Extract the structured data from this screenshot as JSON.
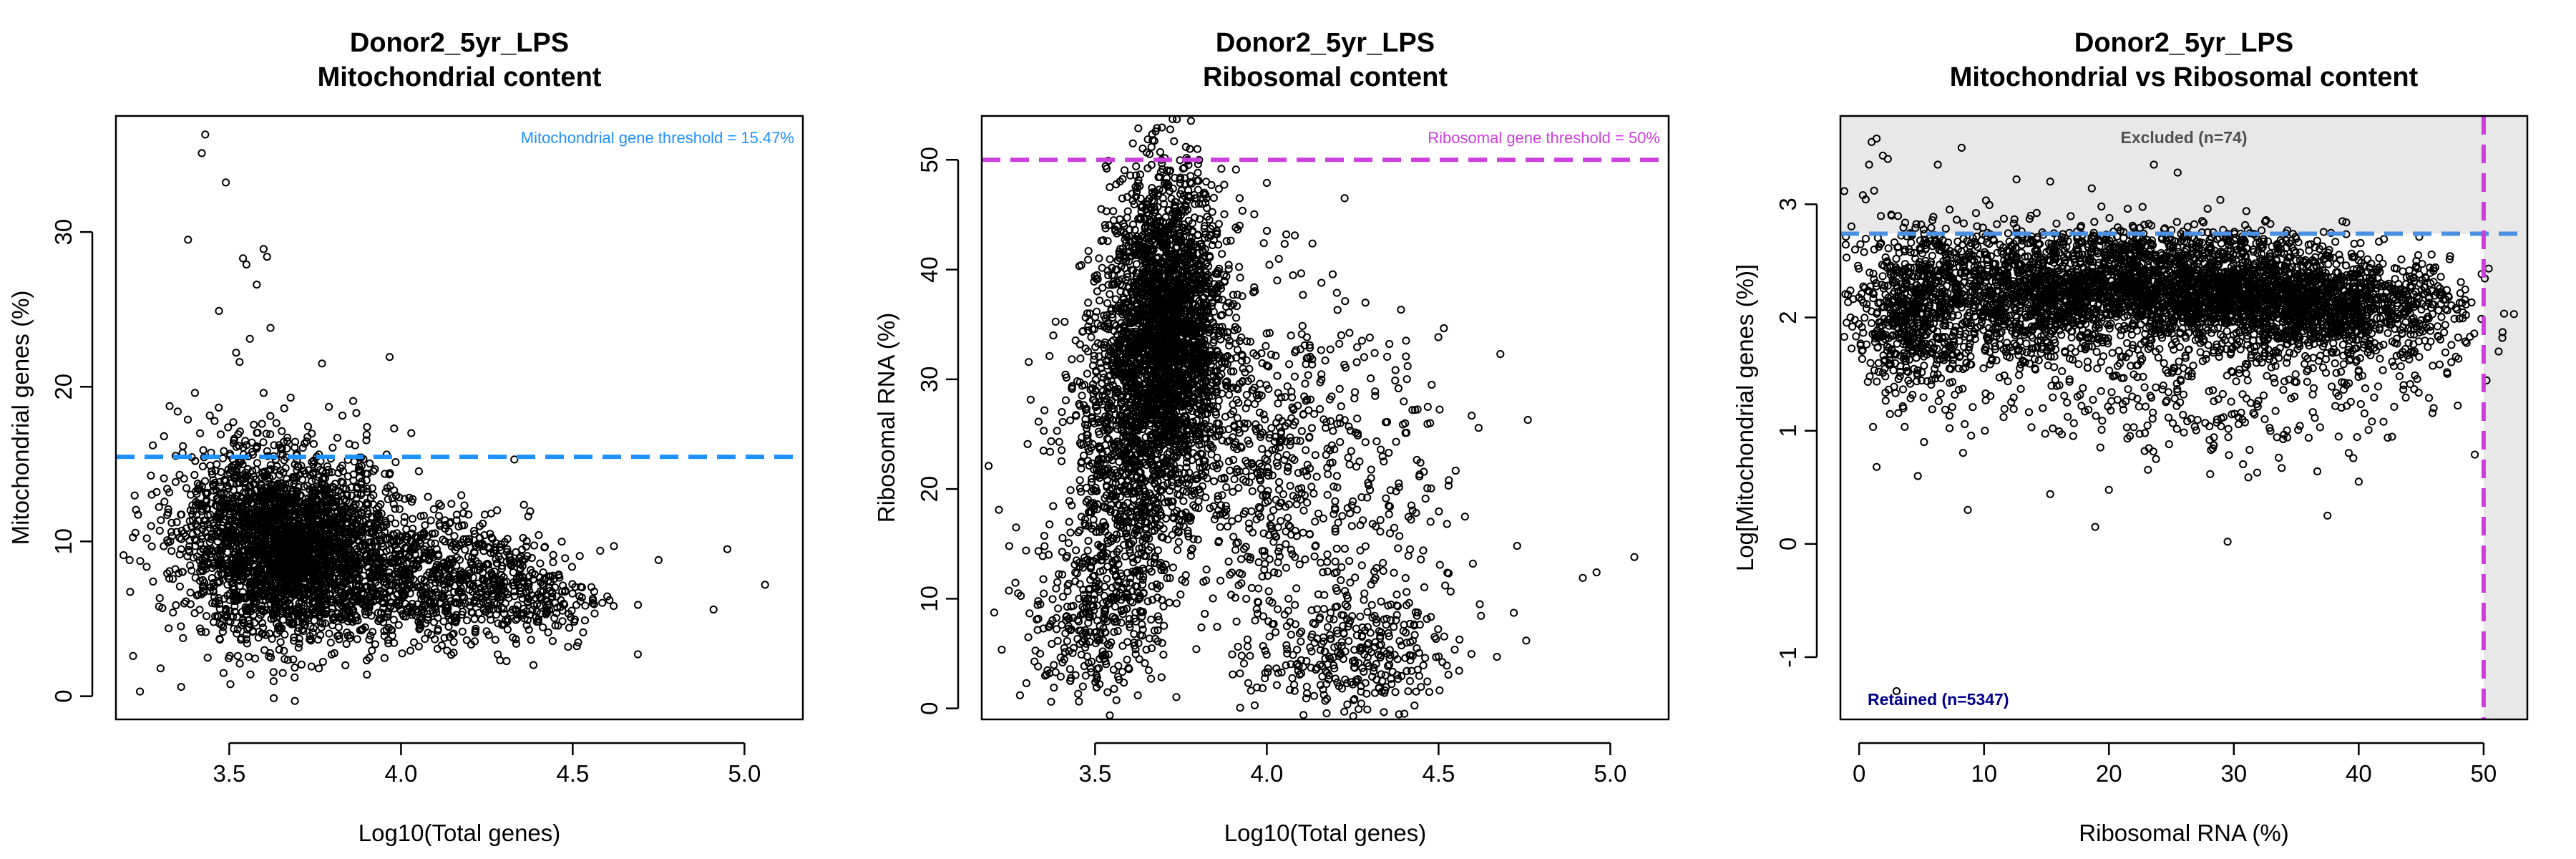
{
  "chart_data": [
    {
      "type": "scatter",
      "title": [
        "Donor2_5yr_LPS",
        "Mitochondrial content"
      ],
      "xlabel": "Log10(Total genes)",
      "ylabel": "Mitochondrial genes (%)",
      "xlim": [
        3.17,
        5.17
      ],
      "ylim": [
        -1.5,
        37.5
      ],
      "xticks": [
        3.5,
        4.0,
        4.5,
        5.0
      ],
      "yticks": [
        0,
        10,
        20,
        30
      ],
      "xtick_labels": [
        "3.5",
        "4.0",
        "4.5",
        "5.0"
      ],
      "ytick_labels": [
        "0",
        "10",
        "20",
        "30"
      ],
      "threshold": {
        "axis": "y",
        "value": 15.47,
        "label": "Mitochondrial gene threshold = 15.47%",
        "color": "#1E90FF"
      },
      "point_color": "#000000",
      "points": [
        [
          3.43,
          36.3
        ],
        [
          3.42,
          35.1
        ],
        [
          3.49,
          33.2
        ],
        [
          3.38,
          29.5
        ],
        [
          3.6,
          28.9
        ],
        [
          3.61,
          28.4
        ],
        [
          3.54,
          28.3
        ],
        [
          3.55,
          27.9
        ],
        [
          3.58,
          26.6
        ],
        [
          3.47,
          24.9
        ],
        [
          3.56,
          23.1
        ],
        [
          3.62,
          23.8
        ],
        [
          3.52,
          22.2
        ],
        [
          3.53,
          21.6
        ],
        [
          3.77,
          21.5
        ],
        [
          3.6,
          19.6
        ],
        [
          3.66,
          18.6
        ],
        [
          3.79,
          18.7
        ],
        [
          3.4,
          19.6
        ],
        [
          3.35,
          18.4
        ],
        [
          3.87,
          18.3
        ],
        [
          3.98,
          17.3
        ],
        [
          4.03,
          17.0
        ],
        [
          3.9,
          16.9
        ],
        [
          3.31,
          16.8
        ],
        [
          4.33,
          15.3
        ],
        [
          4.95,
          9.5
        ],
        [
          5.06,
          7.2
        ],
        [
          4.91,
          5.6
        ],
        [
          4.69,
          5.9
        ],
        [
          4.75,
          8.8
        ],
        [
          4.62,
          9.7
        ],
        [
          4.58,
          9.4
        ],
        [
          3.22,
          2.6
        ],
        [
          3.24,
          0.3
        ],
        [
          3.36,
          0.6
        ],
        [
          3.3,
          1.8
        ],
        [
          3.21,
          8.8
        ],
        [
          3.26,
          10.2
        ]
      ],
      "clusters": [
        {
          "x": 3.68,
          "y": 9.5,
          "sx": 0.15,
          "sy": 2.9,
          "n": 2600
        },
        {
          "x": 4.05,
          "y": 7.6,
          "sx": 0.16,
          "sy": 2.0,
          "n": 700
        },
        {
          "x": 4.35,
          "y": 6.6,
          "sx": 0.12,
          "sy": 1.8,
          "n": 280
        },
        {
          "x": 3.52,
          "y": 12.2,
          "sx": 0.1,
          "sy": 2.6,
          "n": 220
        }
      ]
    },
    {
      "type": "scatter",
      "title": [
        "Donor2_5yr_LPS",
        "Ribosomal content"
      ],
      "xlabel": "Log10(Total genes)",
      "ylabel": "Ribosomal RNA (%)",
      "xlim": [
        3.17,
        5.17
      ],
      "ylim": [
        -1,
        54
      ],
      "xticks": [
        3.5,
        4.0,
        4.5,
        5.0
      ],
      "yticks": [
        0,
        10,
        20,
        30,
        40,
        50
      ],
      "xtick_labels": [
        "3.5",
        "4.0",
        "4.5",
        "5.0"
      ],
      "ytick_labels": [
        "0",
        "10",
        "20",
        "30",
        "40",
        "50"
      ],
      "threshold": {
        "axis": "y",
        "value": 50,
        "label": "Ribosomal gene threshold = 50%",
        "color": "#CD3EDD"
      },
      "point_color": "#000000",
      "points": [
        [
          3.61,
          51.5
        ],
        [
          3.73,
          51.7
        ],
        [
          3.8,
          49.6
        ],
        [
          4.0,
          47.9
        ],
        [
          4.68,
          32.3
        ],
        [
          4.76,
          26.3
        ],
        [
          4.92,
          11.9
        ],
        [
          4.96,
          12.4
        ],
        [
          5.07,
          13.8
        ],
        [
          4.62,
          9.5
        ],
        [
          4.67,
          4.7
        ],
        [
          4.6,
          13.2
        ],
        [
          4.53,
          20.8
        ],
        [
          4.48,
          29.5
        ],
        [
          4.41,
          31.2
        ],
        [
          3.22,
          18.1
        ],
        [
          3.25,
          14.8
        ],
        [
          3.3,
          2.3
        ],
        [
          3.27,
          16.5
        ],
        [
          3.19,
          22.1
        ],
        [
          3.35,
          23.5
        ],
        [
          3.33,
          8.1
        ],
        [
          3.38,
          1.9
        ],
        [
          3.4,
          2.9
        ]
      ],
      "clusters": [
        {
          "x": 3.71,
          "y": 34.0,
          "sx": 0.085,
          "sy": 7.2,
          "n": 2600
        },
        {
          "x": 3.58,
          "y": 22.0,
          "sx": 0.09,
          "sy": 8.0,
          "n": 900
        },
        {
          "x": 4.02,
          "y": 22.0,
          "sx": 0.14,
          "sy": 9.0,
          "n": 500
        },
        {
          "x": 4.25,
          "y": 5.0,
          "sx": 0.14,
          "sy": 2.6,
          "n": 280
        },
        {
          "x": 3.5,
          "y": 8.0,
          "sx": 0.1,
          "sy": 4.0,
          "n": 250
        },
        {
          "x": 4.3,
          "y": 17.0,
          "sx": 0.15,
          "sy": 8.0,
          "n": 170
        }
      ]
    },
    {
      "type": "scatter",
      "title": [
        "Donor2_5yr_LPS",
        "Mitochondrial vs Ribosomal content"
      ],
      "xlabel": "Ribosomal RNA (%)",
      "ylabel": "Log[Mitochondrial genes (%)]",
      "xlim": [
        -1.5,
        53.5
      ],
      "ylim": [
        -1.55,
        3.78
      ],
      "xticks": [
        0,
        10,
        20,
        30,
        40,
        50
      ],
      "yticks": [
        -1,
        0,
        1,
        2,
        3
      ],
      "xtick_labels": [
        "0",
        "10",
        "20",
        "30",
        "40",
        "50"
      ],
      "ytick_labels": [
        "-1",
        "0",
        "1",
        "2",
        "3"
      ],
      "threshold_y": {
        "value": 2.74,
        "color": "#4A90E2"
      },
      "threshold_x": {
        "value": 50,
        "color": "#CD3EDD"
      },
      "excluded_label": "Excluded (n=74)",
      "retained_label": "Retained (n=5347)",
      "excluded_fill": "#E8E8E8",
      "excluded_text_color": "#505050",
      "retained_text_color": "#00008B",
      "point_color": "#000000",
      "points": [
        [
          1.4,
          3.58
        ],
        [
          1.0,
          3.55
        ],
        [
          0.8,
          3.35
        ],
        [
          1.9,
          3.43
        ],
        [
          2.3,
          3.4
        ],
        [
          0.3,
          3.08
        ],
        [
          1.2,
          3.12
        ],
        [
          2.6,
          2.9
        ],
        [
          6.3,
          3.35
        ],
        [
          12.6,
          3.22
        ],
        [
          15.3,
          3.2
        ],
        [
          23.6,
          3.35
        ],
        [
          25.5,
          3.28
        ],
        [
          19.4,
          2.98
        ],
        [
          21.5,
          2.96
        ],
        [
          27.9,
          2.96
        ],
        [
          31.0,
          2.94
        ],
        [
          39.0,
          2.84
        ],
        [
          15.8,
          2.83
        ],
        [
          51.5,
          1.82
        ],
        [
          51.2,
          1.7
        ],
        [
          46.0,
          1.2
        ],
        [
          3.0,
          -1.3
        ],
        [
          29.5,
          0.02
        ],
        [
          18.9,
          0.15
        ],
        [
          8.7,
          0.3
        ],
        [
          5.2,
          0.9
        ],
        [
          4.7,
          0.6
        ],
        [
          1.4,
          0.68
        ],
        [
          15.3,
          0.44
        ],
        [
          37.5,
          0.25
        ],
        [
          40.0,
          0.55
        ],
        [
          2.1,
          1.48
        ],
        [
          1.0,
          1.95
        ],
        [
          1.3,
          1.85
        ]
      ],
      "clusters": [
        {
          "x": 26.0,
          "y": 2.25,
          "sx": 8.0,
          "sy": 0.22,
          "n": 2300
        },
        {
          "x": 38.0,
          "y": 2.05,
          "sx": 5.0,
          "sy": 0.22,
          "n": 900
        },
        {
          "x": 12.0,
          "y": 2.15,
          "sx": 5.5,
          "sy": 0.3,
          "n": 900
        },
        {
          "x": 4.0,
          "y": 2.0,
          "sx": 2.2,
          "sy": 0.35,
          "n": 500
        },
        {
          "x": 28.0,
          "y": 1.45,
          "sx": 9.0,
          "sy": 0.38,
          "n": 380
        },
        {
          "x": 20.0,
          "y": 2.65,
          "sx": 9.0,
          "sy": 0.08,
          "n": 220
        }
      ]
    }
  ]
}
